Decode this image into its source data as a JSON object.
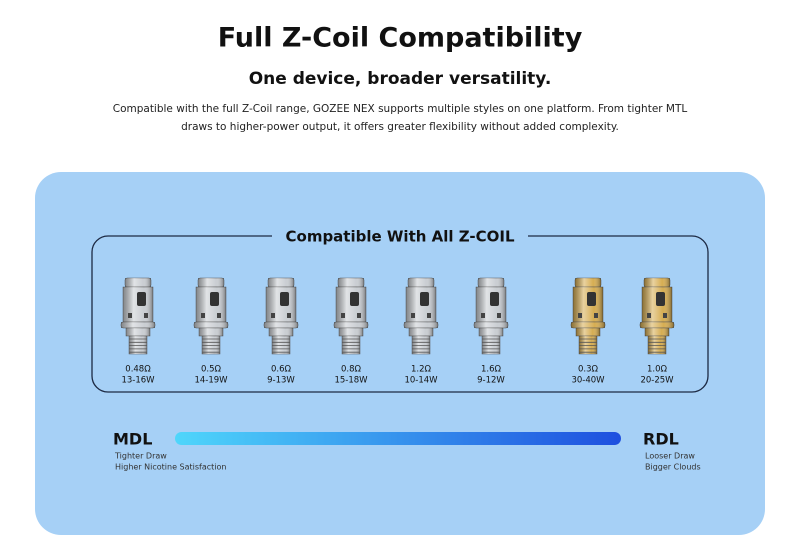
{
  "header": {
    "title": "Full Z-Coil Compatibility",
    "subtitle": "One device, broader versatility.",
    "description": [
      "Compatible with the full Z-Coil range, GOZEE NEX supports multiple styles on one platform. From tighter MTL",
      "draws to higher-power output, it offers greater flexibility without added complexity."
    ]
  },
  "panel": {
    "heading": "Compatible With All Z-COIL",
    "coils": [
      {
        "resistance": "0.48Ω",
        "wattage": "13-16W",
        "color": "#c9cdd2"
      },
      {
        "resistance": "0.5Ω",
        "wattage": "14-19W",
        "color": "#c9cdd2"
      },
      {
        "resistance": "0.6Ω",
        "wattage": "9-13W",
        "color": "#c9cdd2"
      },
      {
        "resistance": "0.8Ω",
        "wattage": "15-18W",
        "color": "#c9cdd2"
      },
      {
        "resistance": "1.2Ω",
        "wattage": "10-14W",
        "color": "#c9cdd2"
      },
      {
        "resistance": "1.6Ω",
        "wattage": "9-12W",
        "color": "#c9cdd2"
      },
      {
        "resistance": "0.3Ω",
        "wattage": "30-40W",
        "color": "#d6ad52"
      },
      {
        "resistance": "1.0Ω",
        "wattage": "20-25W",
        "color": "#d6ad52"
      }
    ],
    "scale": {
      "left": {
        "label": "MDL",
        "lines": [
          "Tighter Draw",
          "Higher Nicotine Satisfaction"
        ]
      },
      "right": {
        "label": "RDL",
        "lines": [
          "Looser Draw",
          "Bigger Clouds"
        ]
      }
    }
  }
}
